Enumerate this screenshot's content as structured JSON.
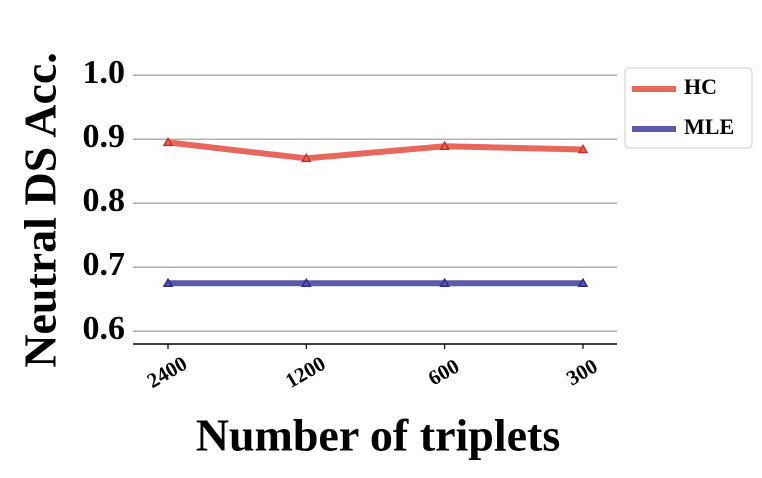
{
  "chart_data": {
    "type": "line",
    "x_label": "Number of triplets",
    "y_label": "Neutral DS Acc.",
    "categories": [
      "2400",
      "1200",
      "600",
      "300"
    ],
    "series": [
      {
        "name": "HC",
        "color": "#e8675d",
        "values": [
          0.895,
          0.87,
          0.889,
          0.884
        ]
      },
      {
        "name": "MLE",
        "color": "#5b5aa8",
        "values": [
          0.675,
          0.675,
          0.675,
          0.675
        ]
      }
    ],
    "ylim": [
      0.58,
      1.03
    ],
    "yticks": [
      0.6,
      0.7,
      0.8,
      0.9,
      {
        "value": 1.0,
        "label": "1.0"
      }
    ],
    "grid": true,
    "legend": "outside-right"
  }
}
